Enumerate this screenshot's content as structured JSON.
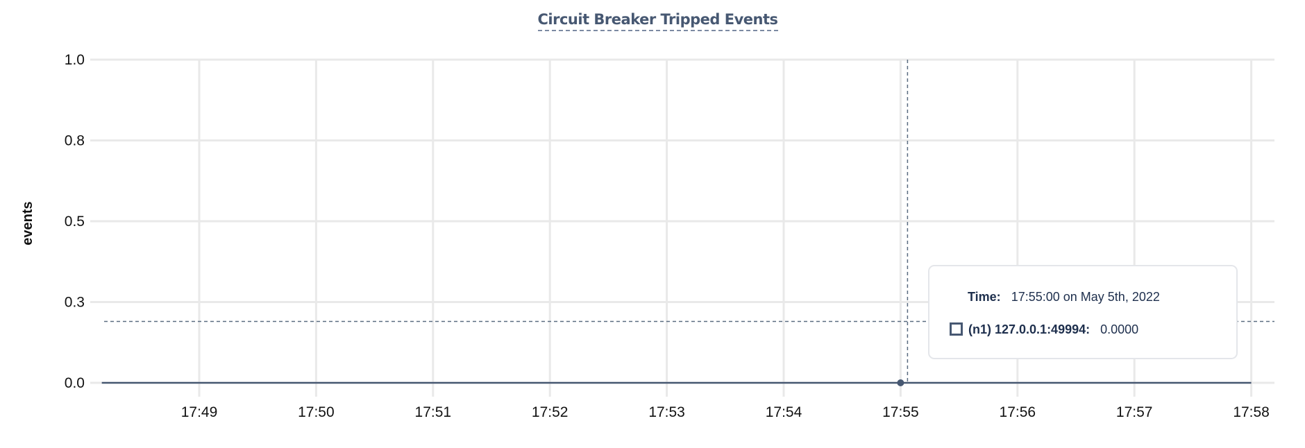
{
  "chart_data": {
    "type": "line",
    "title": "Circuit Breaker Tripped Events",
    "xlabel": "",
    "ylabel": "events",
    "x_ticks": [
      "17:49",
      "17:50",
      "17:51",
      "17:52",
      "17:53",
      "17:54",
      "17:55",
      "17:56",
      "17:57",
      "17:58"
    ],
    "y_ticks": [
      "0.0",
      "0.3",
      "0.5",
      "0.8",
      "1.0"
    ],
    "y_tick_values": [
      0,
      0.25,
      0.5,
      0.75,
      1.0
    ],
    "ylim": [
      0,
      1.0
    ],
    "grid": true,
    "series": [
      {
        "name": "(n1) 127.0.0.1:49994",
        "color": "#475872",
        "x": [
          "17:48:10",
          "17:49:00",
          "17:50:00",
          "17:51:00",
          "17:52:00",
          "17:53:00",
          "17:54:00",
          "17:55:00",
          "17:56:00",
          "17:57:00",
          "17:58:00"
        ],
        "y": [
          0,
          0,
          0,
          0,
          0,
          0,
          0,
          0,
          0,
          0,
          0
        ]
      }
    ],
    "hover": {
      "x": "17:55:00",
      "y_cursor": 0.19
    }
  },
  "tooltip": {
    "time_label": "Time:",
    "time_value": "17:55:00 on May 5th, 2022",
    "series_label": "(n1) 127.0.0.1:49994:",
    "series_value": "0.0000"
  }
}
